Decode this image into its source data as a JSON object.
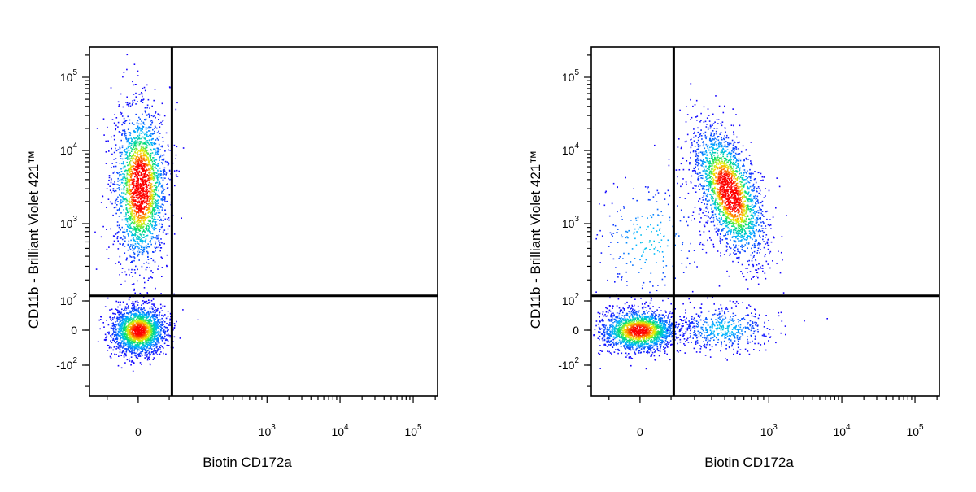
{
  "chart_data": [
    {
      "type": "scatter",
      "subtype": "flow-cytometry-density-dot-plot",
      "xlabel": "Biotin CD172a",
      "ylabel": "CD11b - Brilliant Violet 421™",
      "x_scale": "biexponential",
      "y_scale": "biexponential",
      "xlim": [
        -600,
        200000
      ],
      "ylim": [
        -400,
        250000
      ],
      "x_tick_labels": [
        {
          "base": "0",
          "exp": "",
          "value": 0
        },
        {
          "base": "10",
          "exp": "3",
          "value": 1000
        },
        {
          "base": "10",
          "exp": "4",
          "value": 10000
        },
        {
          "base": "10",
          "exp": "5",
          "value": 100000
        }
      ],
      "y_tick_labels": [
        {
          "base": "-10",
          "exp": "2",
          "value": -100
        },
        {
          "base": "0",
          "exp": "",
          "value": 0
        },
        {
          "base": "10",
          "exp": "2",
          "value": 100
        },
        {
          "base": "10",
          "exp": "3",
          "value": 1000
        },
        {
          "base": "10",
          "exp": "4",
          "value": 10000
        },
        {
          "base": "10",
          "exp": "5",
          "value": 100000
        }
      ],
      "quadrant_gate": {
        "x": 110,
        "y": 120
      },
      "populations": [
        {
          "name": "CD11b-high CD172a-negative",
          "center": [
            0,
            2500
          ],
          "n": 2300
        },
        {
          "name": "double-negative",
          "center": [
            0,
            0
          ],
          "n": 2000
        }
      ],
      "grid": false,
      "legend": "none",
      "colormap": [
        "#1500ff",
        "#00b8ff",
        "#00e070",
        "#f0f000",
        "#ff8000",
        "#ff0000"
      ]
    },
    {
      "type": "scatter",
      "subtype": "flow-cytometry-density-dot-plot",
      "xlabel": "Biotin CD172a",
      "ylabel": "CD11b - Brilliant Violet 421™",
      "x_scale": "biexponential",
      "y_scale": "biexponential",
      "xlim": [
        -600,
        200000
      ],
      "ylim": [
        -400,
        250000
      ],
      "x_tick_labels": [
        {
          "base": "0",
          "exp": "",
          "value": 0
        },
        {
          "base": "10",
          "exp": "3",
          "value": 1000
        },
        {
          "base": "10",
          "exp": "4",
          "value": 10000
        },
        {
          "base": "10",
          "exp": "5",
          "value": 100000
        }
      ],
      "y_tick_labels": [
        {
          "base": "-10",
          "exp": "2",
          "value": -100
        },
        {
          "base": "0",
          "exp": "",
          "value": 0
        },
        {
          "base": "10",
          "exp": "2",
          "value": 100
        },
        {
          "base": "10",
          "exp": "3",
          "value": 1000
        },
        {
          "base": "10",
          "exp": "4",
          "value": 10000
        },
        {
          "base": "10",
          "exp": "5",
          "value": 100000
        }
      ],
      "quadrant_gate": {
        "x": 110,
        "y": 120
      },
      "populations": [
        {
          "name": "CD11b-high CD172a-positive",
          "center": [
            500,
            2000
          ],
          "n": 2300
        },
        {
          "name": "double-negative",
          "center": [
            0,
            0
          ],
          "n": 1900
        },
        {
          "name": "CD172a-positive CD11b-low",
          "center": [
            450,
            20
          ],
          "n": 500
        },
        {
          "name": "CD11b-positive CD172a-negative scatter",
          "center": [
            0,
            500
          ],
          "n": 250
        }
      ],
      "grid": false,
      "legend": "none",
      "colormap": [
        "#1500ff",
        "#00b8ff",
        "#00e070",
        "#f0f000",
        "#ff8000",
        "#ff0000"
      ]
    }
  ]
}
